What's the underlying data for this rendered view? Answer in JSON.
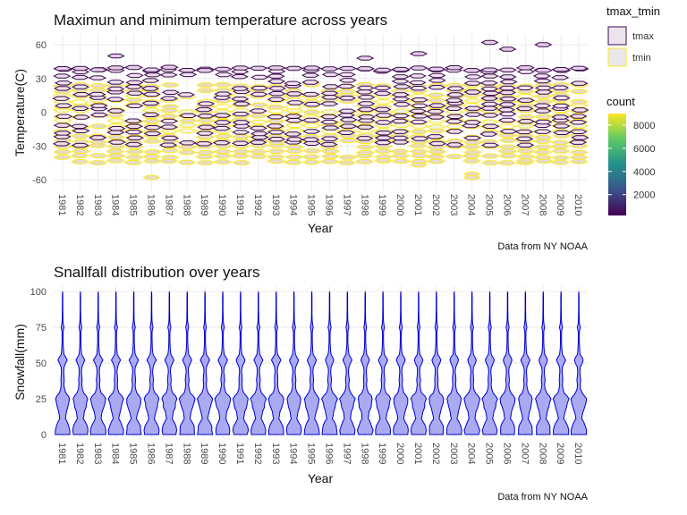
{
  "chart_data": [
    {
      "type": "hexbin",
      "title": "Maximun and minimum temperature across years",
      "xlabel": "Year",
      "ylabel": "Temperature(C)",
      "caption": "Data from NY NOAA",
      "xlim": [
        1981,
        2010
      ],
      "ylim": [
        -60,
        60
      ],
      "x_ticks": [
        "1981",
        "1982",
        "1983",
        "1984",
        "1985",
        "1986",
        "1987",
        "1988",
        "1989",
        "1990",
        "1991",
        "1992",
        "1993",
        "1994",
        "1995",
        "1996",
        "1997",
        "1998",
        "1999",
        "2000",
        "2001",
        "2002",
        "2003",
        "2004",
        "2005",
        "2006",
        "2007",
        "2008",
        "2009",
        "2010"
      ],
      "y_ticks": [
        "-60",
        "-30",
        "0",
        "30",
        "60"
      ],
      "grid": true,
      "legend_position": "right",
      "series": [
        {
          "name": "tmax",
          "outline": "#3d0a4f",
          "fill": "#ece4ec"
        },
        {
          "name": "tmin",
          "outline": "#fde725",
          "fill": "#e8e8e8"
        }
      ],
      "legend_title": "tmax_tmin",
      "colorbar": {
        "title": "count",
        "ticks": [
          "2000",
          "4000",
          "6000",
          "8000"
        ],
        "range": [
          200,
          9000
        ],
        "palette": "viridis"
      },
      "summary": {
        "tmax_range": [
          -30,
          40
        ],
        "tmin_range": [
          -40,
          25
        ]
      },
      "outliers": [
        {
          "year": 2005,
          "value": 62
        },
        {
          "year": 2006,
          "value": 56
        },
        {
          "year": 2008,
          "value": 60
        },
        {
          "year": 1984,
          "value": 50
        },
        {
          "year": 1998,
          "value": 48
        },
        {
          "year": 2001,
          "value": 52
        },
        {
          "year": 1986,
          "value": -58
        },
        {
          "year": 2001,
          "value": -47
        },
        {
          "year": 2004,
          "value": -55
        },
        {
          "year": 2004,
          "value": -58
        },
        {
          "year": 1999,
          "value": -43
        },
        {
          "year": 2007,
          "value": -43
        }
      ]
    },
    {
      "type": "violin",
      "title": "Snallfall distribution over years",
      "xlabel": "Year",
      "ylabel": "Snowfall(mm)",
      "caption": "Data from NY NOAA",
      "categories": [
        "1981",
        "1982",
        "1983",
        "1984",
        "1985",
        "1986",
        "1987",
        "1988",
        "1989",
        "1990",
        "1991",
        "1992",
        "1993",
        "1994",
        "1995",
        "1996",
        "1997",
        "1998",
        "1999",
        "2000",
        "2001",
        "2002",
        "2003",
        "2004",
        "2005",
        "2006",
        "2007",
        "2008",
        "2009",
        "2010"
      ],
      "ylim": [
        0,
        100
      ],
      "y_ticks": [
        "0",
        "25",
        "50",
        "75",
        "100"
      ],
      "grid": true,
      "fill": "#aaaaf2",
      "outline": "#0000cc"
    }
  ]
}
